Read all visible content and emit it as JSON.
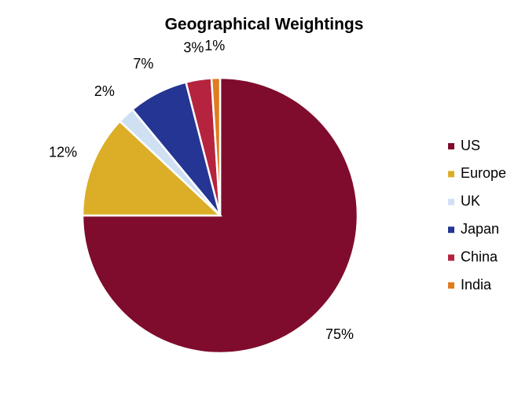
{
  "chart_data": {
    "type": "pie",
    "title": "Geographical Weightings",
    "categories": [
      "US",
      "Europe",
      "UK",
      "Japan",
      "China",
      "India"
    ],
    "values": [
      75,
      12,
      2,
      7,
      3,
      1
    ],
    "value_labels": [
      "75%",
      "12%",
      "2%",
      "7%",
      "3%",
      "1%"
    ],
    "colors": [
      "#7f0c2c",
      "#dcae27",
      "#cfe0f3",
      "#243593",
      "#b5233f",
      "#e07b1e"
    ],
    "legend": "right"
  }
}
